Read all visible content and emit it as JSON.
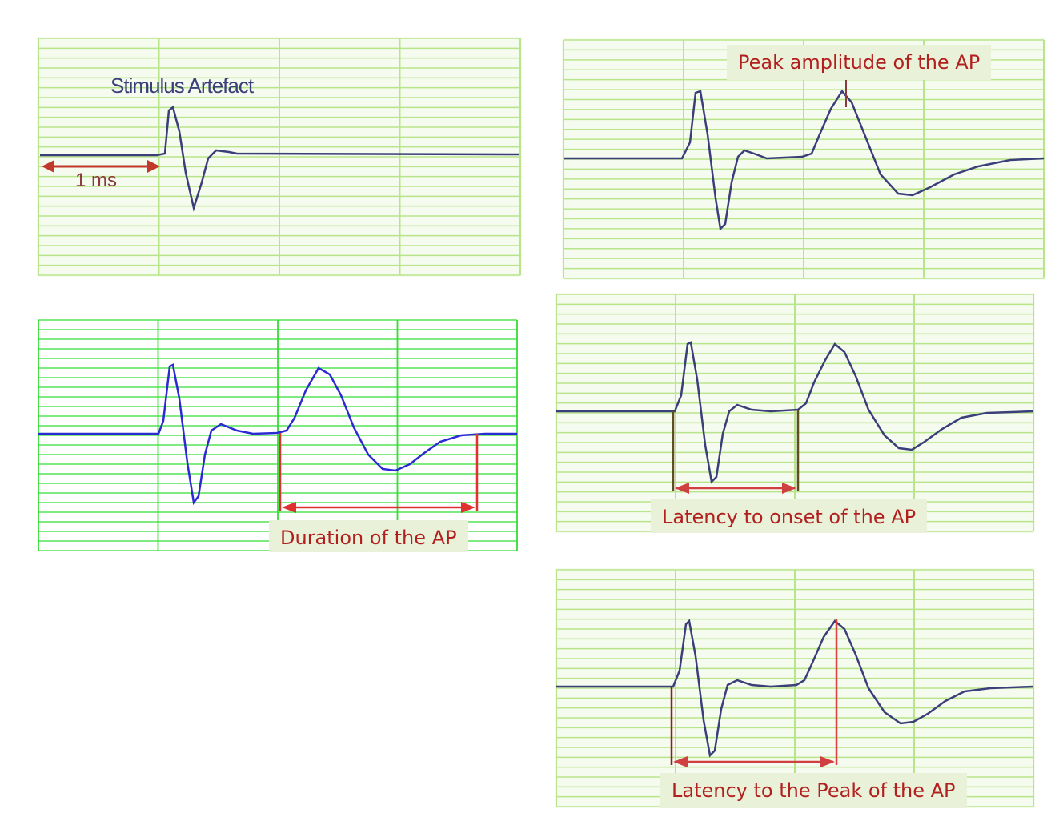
{
  "labels": {
    "stimulus_artefact": "Stimulus Artefact",
    "one_ms": "1 ms",
    "peak_amplitude": "Peak amplitude of the AP",
    "duration": "Duration of the AP",
    "latency_onset": "Latency to onset of the AP",
    "latency_peak": "Latency to the Peak of the AP"
  },
  "colors": {
    "grid": "#b9e58a",
    "grid_bright": "#33dd33",
    "trace": "#2b2bd4",
    "trace_dark": "#3a3f7a",
    "marker": "#e03030",
    "label_bg": "#e9f2d8",
    "label_text": "#b21f1f"
  }
}
